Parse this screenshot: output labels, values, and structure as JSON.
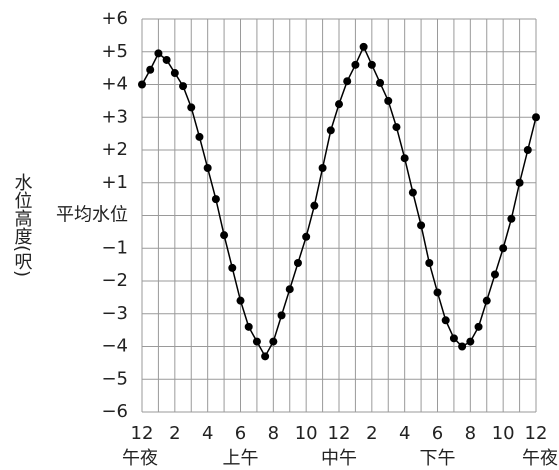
{
  "chart_data": {
    "type": "line",
    "y_label": "水位高度(呎)",
    "x": [
      0,
      0.5,
      1,
      1.5,
      2,
      2.5,
      3,
      3.5,
      4,
      4.5,
      5,
      5.5,
      6,
      6.5,
      7,
      7.5,
      8,
      8.5,
      9,
      9.5,
      10,
      10.5,
      11,
      11.5,
      12,
      12.5,
      13,
      13.5,
      14,
      14.5,
      15,
      15.5,
      16,
      16.5,
      17,
      17.5,
      18,
      18.5,
      19,
      19.5,
      20,
      20.5,
      21,
      21.5,
      22,
      22.5,
      23,
      23.5,
      24
    ],
    "series": [
      {
        "color": "#000000",
        "values": [
          4.0,
          4.45,
          4.95,
          4.75,
          4.35,
          3.95,
          3.3,
          2.4,
          1.45,
          0.5,
          -0.6,
          -1.6,
          -2.6,
          -3.4,
          -3.85,
          -4.3,
          -3.85,
          -3.05,
          -2.25,
          -1.45,
          -0.65,
          0.3,
          1.45,
          2.6,
          3.4,
          4.1,
          4.6,
          5.15,
          4.6,
          4.05,
          3.5,
          2.7,
          1.75,
          0.7,
          -0.3,
          -1.45,
          -2.35,
          -3.2,
          -3.75,
          -4.0,
          -3.85,
          -3.4,
          -2.6,
          -1.8,
          -1.0,
          -0.1,
          1.0,
          2.0,
          3.0
        ]
      }
    ],
    "xlim": [
      0,
      24
    ],
    "xticks": [
      {
        "value": 0,
        "label": "12"
      },
      {
        "value": 2,
        "label": "2"
      },
      {
        "value": 4,
        "label": "4"
      },
      {
        "value": 6,
        "label": "6"
      },
      {
        "value": 8,
        "label": "8"
      },
      {
        "value": 10,
        "label": "10"
      },
      {
        "value": 12,
        "label": "12"
      },
      {
        "value": 14,
        "label": "2"
      },
      {
        "value": 16,
        "label": "4"
      },
      {
        "value": 18,
        "label": "6"
      },
      {
        "value": 20,
        "label": "8"
      },
      {
        "value": 22,
        "label": "10"
      },
      {
        "value": 24,
        "label": "12"
      }
    ],
    "x_minor_ticks": [
      1,
      3,
      5,
      7,
      9,
      11,
      13,
      15,
      17,
      19,
      21,
      23
    ],
    "x_sublabels": [
      {
        "value": 0,
        "label": "午夜"
      },
      {
        "value": 6,
        "label": "上午"
      },
      {
        "value": 12,
        "label": "中午"
      },
      {
        "value": 18,
        "label": "下午"
      },
      {
        "value": 24,
        "label": "午夜"
      }
    ],
    "ylim": [
      -6,
      6
    ],
    "yticks": [
      {
        "value": -6,
        "label": "−6"
      },
      {
        "value": -5,
        "label": "−5"
      },
      {
        "value": -4,
        "label": "−4"
      },
      {
        "value": -3,
        "label": "−3"
      },
      {
        "value": -2,
        "label": "−2"
      },
      {
        "value": -1,
        "label": "−1"
      },
      {
        "value": 0,
        "label": "平均水位"
      },
      {
        "value": 1,
        "label": "+1"
      },
      {
        "value": 2,
        "label": "+2"
      },
      {
        "value": 3,
        "label": "+3"
      },
      {
        "value": 4,
        "label": "+4"
      },
      {
        "value": 5,
        "label": "+5"
      },
      {
        "value": 6,
        "label": "+6"
      }
    ],
    "grid": true
  }
}
